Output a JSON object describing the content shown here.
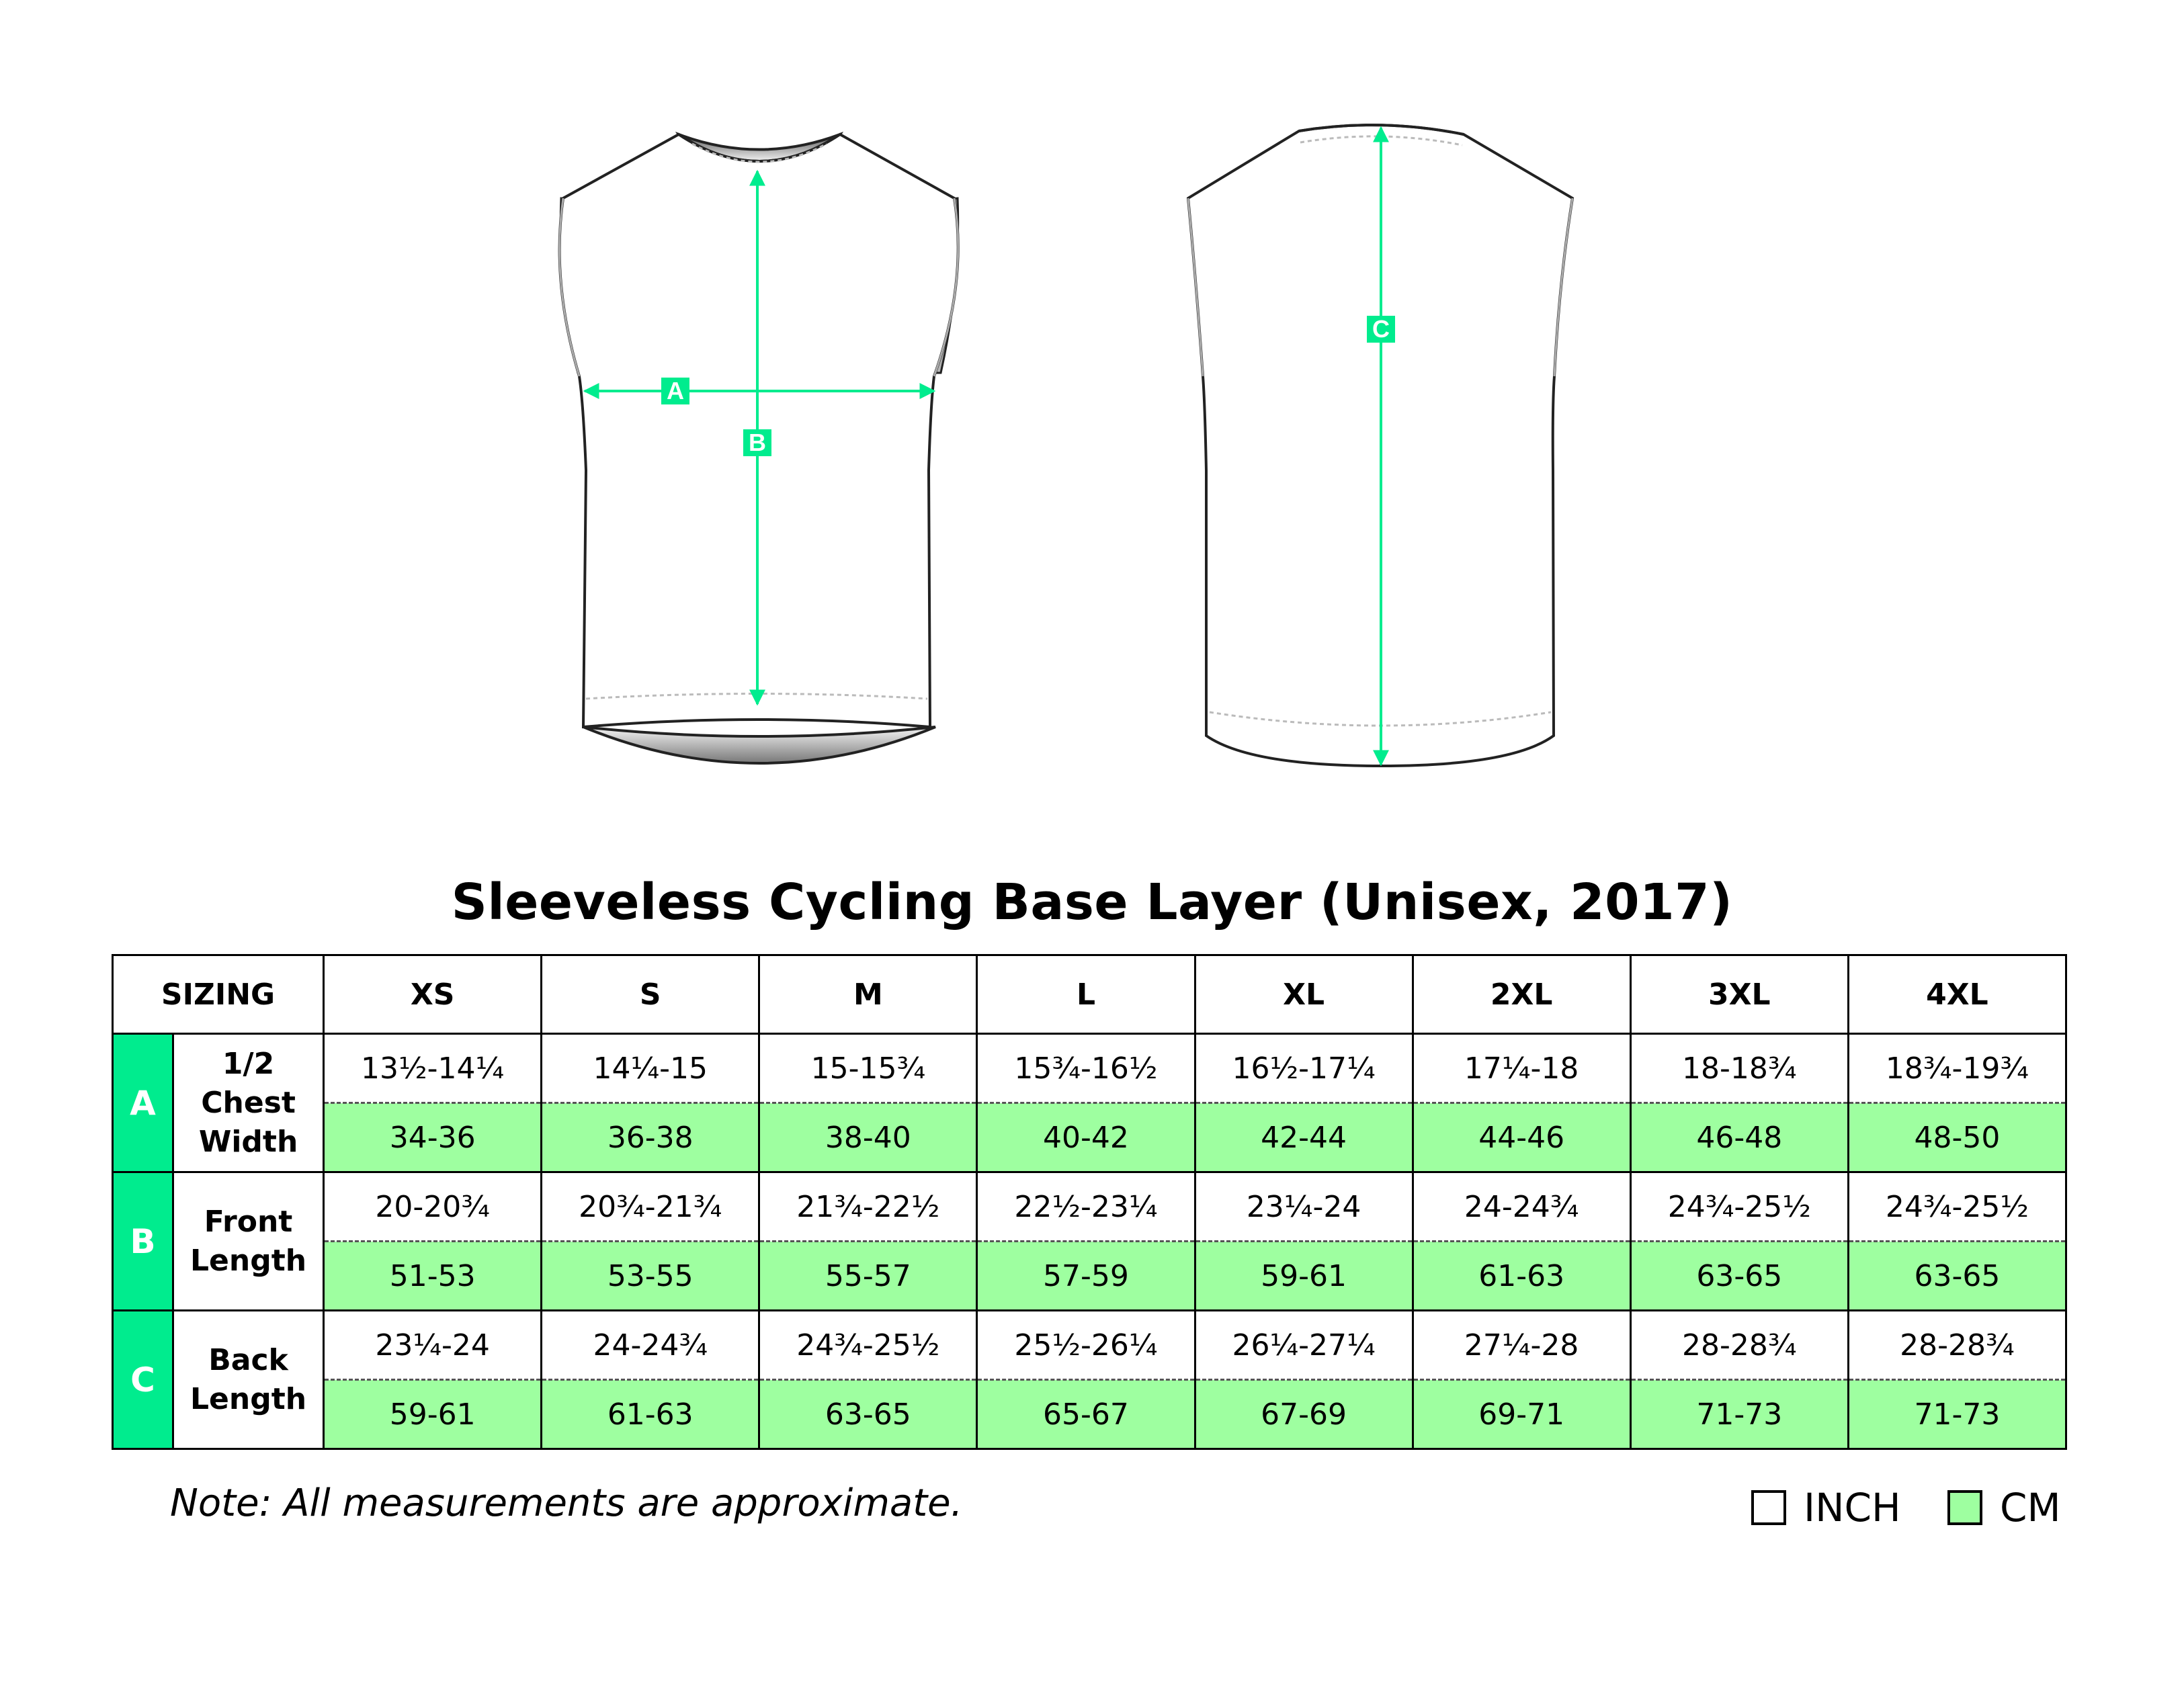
{
  "title": "Sleeveless Cycling Base Layer (Unisex, 2017)",
  "diagram": {
    "front_labels": [
      "A",
      "B"
    ],
    "back_label": "C",
    "measure_color": "#00ec8e"
  },
  "table": {
    "corner_label": "SIZING",
    "sizes": [
      "XS",
      "S",
      "M",
      "L",
      "XL",
      "2XL",
      "3XL",
      "4XL"
    ],
    "rows": [
      {
        "letter": "A",
        "measurement": "1/2 Chest Width",
        "inch": [
          "13½-14¼",
          "14¼-15",
          "15-15¾",
          "15¾-16½",
          "16½-17¼",
          "17¼-18",
          "18-18¾",
          "18¾-19¾"
        ],
        "cm": [
          "34-36",
          "36-38",
          "38-40",
          "40-42",
          "42-44",
          "44-46",
          "46-48",
          "48-50"
        ]
      },
      {
        "letter": "B",
        "measurement": "Front Length",
        "inch": [
          "20-20¾",
          "20¾-21¾",
          "21¾-22½",
          "22½-23¼",
          "23¼-24",
          "24-24¾",
          "24¾-25½",
          "24¾-25½"
        ],
        "cm": [
          "51-53",
          "53-55",
          "55-57",
          "57-59",
          "59-61",
          "61-63",
          "63-65",
          "63-65"
        ]
      },
      {
        "letter": "C",
        "measurement": "Back Length",
        "inch": [
          "23¼-24",
          "24-24¾",
          "24¾-25½",
          "25½-26¼",
          "26¼-27¼",
          "27¼-28",
          "28-28¾",
          "28-28¾"
        ],
        "cm": [
          "59-61",
          "61-63",
          "63-65",
          "65-67",
          "67-69",
          "69-71",
          "71-73",
          "71-73"
        ]
      }
    ]
  },
  "note": "Note: All measurements are approximate.",
  "legend": {
    "inch_label": "INCH",
    "cm_label": "CM",
    "cm_color": "#9effa0"
  }
}
